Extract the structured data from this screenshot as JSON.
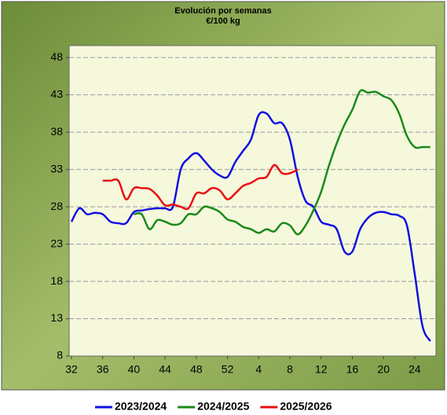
{
  "chart_data": {
    "type": "line",
    "title": "Evolución por semanas",
    "subtitle": "€/100 kg",
    "categories": [
      32,
      null,
      null,
      null,
      36,
      null,
      null,
      null,
      40,
      null,
      null,
      null,
      44,
      null,
      null,
      null,
      48,
      null,
      null,
      null,
      52,
      null,
      null,
      null,
      4,
      null,
      null,
      null,
      8,
      null,
      null,
      null,
      12,
      null,
      null,
      null,
      16,
      null,
      null,
      null,
      20,
      null,
      null,
      null,
      24,
      null,
      null
    ],
    "series": [
      {
        "name": "2023/2024",
        "color": "#1010e0",
        "values": [
          26,
          27.8,
          27,
          27.2,
          27,
          26,
          25.8,
          25.8,
          27.3,
          27.5,
          27.7,
          27.8,
          27.8,
          28,
          33,
          34.5,
          35.2,
          34.2,
          33,
          32.2,
          32,
          34,
          35.5,
          37,
          40.3,
          40.5,
          39.2,
          39.2,
          37,
          32,
          28.8,
          28,
          26,
          25.6,
          25,
          22,
          22,
          25,
          26.5,
          27.2,
          27.3,
          27,
          26.8,
          25.5,
          19,
          12,
          10
        ]
      },
      {
        "name": "2024/2025",
        "color": "#1a8a1a",
        "values": [
          null,
          null,
          null,
          null,
          null,
          null,
          null,
          null,
          27,
          27,
          25,
          26.2,
          26,
          25.6,
          25.8,
          27,
          27,
          28,
          27.8,
          27.3,
          26.3,
          26,
          25.3,
          25,
          24.5,
          25,
          24.7,
          25.8,
          25.5,
          24.3,
          25.5,
          27.5,
          30,
          33.5,
          36.5,
          39,
          41,
          43.5,
          43.3,
          43.4,
          42.8,
          42.3,
          40.5,
          37.5,
          36,
          36,
          36
        ]
      },
      {
        "name": "2025/2026",
        "color": "#e81010",
        "values": [
          null,
          null,
          null,
          null,
          31.5,
          31.5,
          31.5,
          29,
          30.5,
          30.5,
          30.4,
          29.5,
          28.2,
          28.3,
          28,
          27.8,
          29.8,
          29.8,
          30.5,
          30.2,
          29,
          29.8,
          30.8,
          31.2,
          31.8,
          32,
          33.6,
          32.5,
          32.5,
          33,
          null,
          null,
          null,
          null,
          null,
          null,
          null,
          null,
          null,
          null,
          null,
          null,
          null,
          null,
          null,
          null,
          null
        ]
      }
    ],
    "ylim": [
      8,
      49.6
    ],
    "yticks": [
      8,
      13,
      18,
      23,
      28,
      33,
      38,
      43,
      48
    ],
    "grid": true,
    "legend": "bottom"
  }
}
